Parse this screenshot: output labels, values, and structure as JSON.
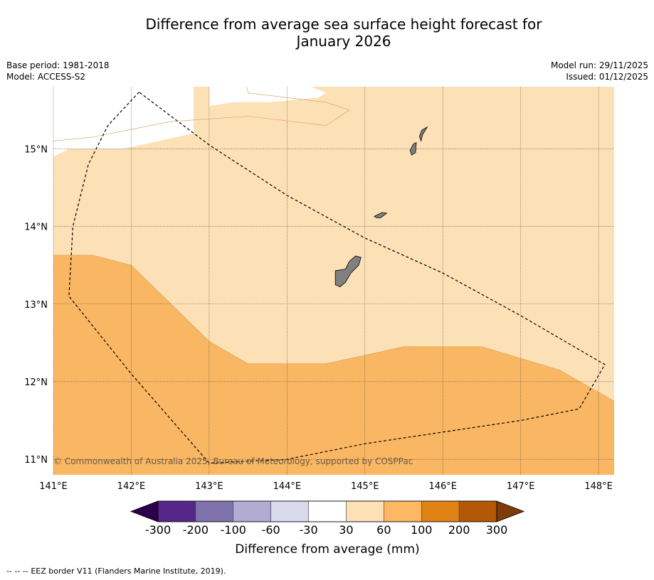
{
  "title": {
    "line1": "Difference from average sea surface height forecast for",
    "line2": "January 2026"
  },
  "meta": {
    "base_period": "Base period: 1981-2018",
    "model": "Model: ACCESS-S2",
    "model_run": "Model run: 29/11/2025",
    "issued": "Issued: 01/12/2025"
  },
  "map": {
    "lon_range": [
      141.0,
      148.2
    ],
    "lat_range": [
      10.8,
      15.8
    ],
    "lon_ticks": [
      141,
      142,
      143,
      144,
      145,
      146,
      147,
      148
    ],
    "lon_labels": [
      "141°E",
      "142°E",
      "143°E",
      "144°E",
      "145°E",
      "146°E",
      "147°E",
      "148°E"
    ],
    "lat_ticks": [
      11,
      12,
      13,
      14,
      15
    ],
    "lat_labels": [
      "11°N",
      "12°N",
      "13°N",
      "14°N",
      "15°N"
    ],
    "copyright": "© Commonwealth of Australia 2025, Bureau of Meteorology, supported by COSPPac",
    "zones": [
      {
        "name": "30-60 mm band (north)",
        "value_range_mm": [
          30,
          60
        ],
        "color": "#fde1b6",
        "lonlat": [
          [
            141.0,
            15.8
          ],
          [
            148.2,
            15.8
          ],
          [
            148.2,
            11.75
          ],
          [
            147.5,
            12.15
          ],
          [
            146.5,
            12.45
          ],
          [
            145.5,
            12.45
          ],
          [
            144.5,
            12.23
          ],
          [
            143.5,
            12.23
          ],
          [
            143.0,
            12.52
          ],
          [
            142.0,
            13.5
          ],
          [
            141.5,
            13.63
          ],
          [
            141.0,
            13.63
          ]
        ]
      },
      {
        "name": "white -30 to 30 mm patch (west)",
        "value_range_mm": [
          -30,
          30
        ],
        "color": "#ffffff",
        "lonlat": [
          [
            141.0,
            15.8
          ],
          [
            142.8,
            15.8
          ],
          [
            142.8,
            15.2
          ],
          [
            141.9,
            15.0
          ],
          [
            141.2,
            15.0
          ],
          [
            141.0,
            14.9
          ]
        ]
      },
      {
        "name": "white -30 to 30 mm patch (centre)",
        "value_range_mm": [
          -30,
          30
        ],
        "color": "#ffffff",
        "lonlat": [
          [
            143.0,
            15.8
          ],
          [
            144.3,
            15.8
          ],
          [
            144.5,
            15.72
          ],
          [
            144.4,
            15.66
          ],
          [
            143.8,
            15.6
          ],
          [
            143.3,
            15.6
          ],
          [
            143.0,
            15.55
          ]
        ]
      }
    ],
    "zone_boundaries": [
      {
        "name": "boundary 30-60 / 60-100",
        "lonlat": [
          [
            141.0,
            13.63
          ],
          [
            141.5,
            13.63
          ],
          [
            142.0,
            13.5
          ],
          [
            143.0,
            12.52
          ],
          [
            143.5,
            12.23
          ],
          [
            144.5,
            12.23
          ],
          [
            145.5,
            12.45
          ],
          [
            146.5,
            12.45
          ],
          [
            147.5,
            12.15
          ],
          [
            148.2,
            11.75
          ]
        ]
      },
      {
        "name": "boundary -30..30 / 30-60 west",
        "lonlat": [
          [
            141.0,
            15.1
          ],
          [
            141.5,
            15.15
          ],
          [
            142.0,
            15.25
          ],
          [
            142.5,
            15.35
          ],
          [
            143.5,
            15.42
          ],
          [
            144.5,
            15.3
          ],
          [
            144.8,
            15.5
          ],
          [
            144.5,
            15.6
          ],
          [
            143.5,
            15.72
          ],
          [
            143.48,
            15.8
          ]
        ]
      }
    ],
    "eez_border": [
      [
        142.1,
        15.73
      ],
      [
        141.7,
        15.3
      ],
      [
        141.45,
        14.8
      ],
      [
        141.25,
        14.0
      ],
      [
        141.2,
        13.1
      ],
      [
        142.0,
        12.1
      ],
      [
        143.0,
        10.95
      ],
      [
        144.0,
        11.0
      ],
      [
        145.0,
        11.2
      ],
      [
        146.0,
        11.35
      ],
      [
        147.0,
        11.5
      ],
      [
        147.75,
        11.65
      ],
      [
        148.08,
        12.22
      ],
      [
        147.0,
        12.85
      ],
      [
        146.0,
        13.4
      ],
      [
        145.0,
        13.85
      ],
      [
        144.0,
        14.4
      ],
      [
        143.0,
        15.05
      ],
      [
        142.1,
        15.73
      ]
    ],
    "islands": [
      {
        "name": "Guam",
        "lonlat": [
          [
            144.62,
            13.43
          ],
          [
            144.75,
            13.45
          ],
          [
            144.8,
            13.55
          ],
          [
            144.88,
            13.62
          ],
          [
            144.95,
            13.6
          ],
          [
            144.92,
            13.5
          ],
          [
            144.82,
            13.4
          ],
          [
            144.75,
            13.28
          ],
          [
            144.68,
            13.22
          ],
          [
            144.62,
            13.25
          ],
          [
            144.62,
            13.35
          ]
        ]
      },
      {
        "name": "Rota",
        "lonlat": [
          [
            145.12,
            14.13
          ],
          [
            145.22,
            14.18
          ],
          [
            145.28,
            14.17
          ],
          [
            145.2,
            14.11
          ],
          [
            145.15,
            14.11
          ]
        ]
      },
      {
        "name": "Tinian",
        "lonlat": [
          [
            145.58,
            14.98
          ],
          [
            145.62,
            15.06
          ],
          [
            145.66,
            15.08
          ],
          [
            145.65,
            14.95
          ],
          [
            145.6,
            14.92
          ]
        ]
      },
      {
        "name": "Saipan",
        "lonlat": [
          [
            145.7,
            15.16
          ],
          [
            145.73,
            15.24
          ],
          [
            145.8,
            15.28
          ],
          [
            145.74,
            15.18
          ],
          [
            145.72,
            15.1
          ]
        ]
      }
    ]
  },
  "colorbar": {
    "title": "Difference from average (mm)",
    "colors": [
      "#2d004b",
      "#542788",
      "#8073ac",
      "#b2abd2",
      "#d8daeb",
      "#ffffff",
      "#fee0b6",
      "#fdb863",
      "#e08214",
      "#b35806",
      "#7f3b08"
    ],
    "tick_labels": [
      "-300",
      "-200",
      "-100",
      "-60",
      "-30",
      "30",
      "60",
      "100",
      "200",
      "300"
    ]
  },
  "footer": {
    "legend_symbol": "-- -- --",
    "legend_text": "EEZ border V11 (Flanders Marine Institute, 2019)."
  }
}
